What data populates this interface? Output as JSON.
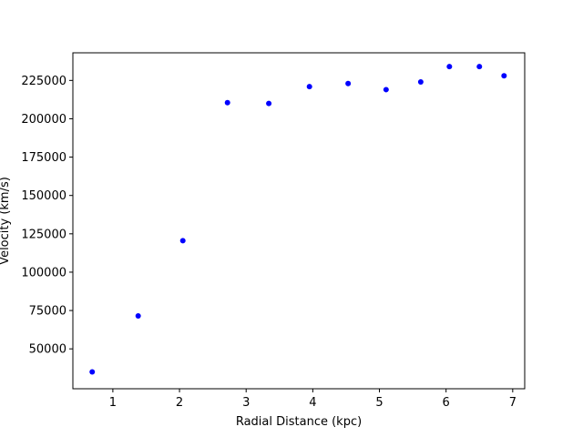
{
  "chart_data": {
    "type": "scatter",
    "title": "",
    "xlabel": "Radial Distance (kpc)",
    "ylabel": "Velocity (km/s)",
    "xlim": [
      0.4,
      7.18
    ],
    "ylim": [
      24000,
      243000
    ],
    "xticks": [
      1,
      2,
      3,
      4,
      5,
      6,
      7
    ],
    "yticks": [
      50000,
      75000,
      100000,
      125000,
      150000,
      175000,
      200000,
      225000
    ],
    "grid": false,
    "legend": "none",
    "marker_color": "#0000ff",
    "series": [
      {
        "points": [
          {
            "x": 0.69,
            "y": 35000
          },
          {
            "x": 1.38,
            "y": 71500
          },
          {
            "x": 2.05,
            "y": 120500
          },
          {
            "x": 2.72,
            "y": 210500
          },
          {
            "x": 3.34,
            "y": 210000
          },
          {
            "x": 3.95,
            "y": 221000
          },
          {
            "x": 4.53,
            "y": 223000
          },
          {
            "x": 5.1,
            "y": 219000
          },
          {
            "x": 5.62,
            "y": 224000
          },
          {
            "x": 6.05,
            "y": 234000
          },
          {
            "x": 6.5,
            "y": 234000
          },
          {
            "x": 6.87,
            "y": 228000
          }
        ]
      }
    ]
  }
}
